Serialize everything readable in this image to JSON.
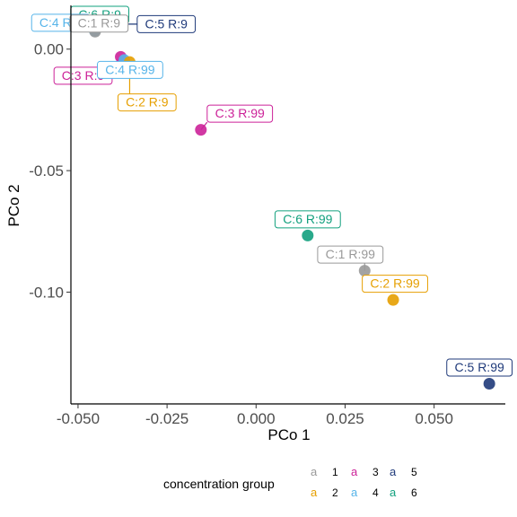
{
  "chart_data": {
    "type": "scatter",
    "xlabel": "PCo 1",
    "ylabel": "PCo 2",
    "xlim": [
      -0.052,
      0.07
    ],
    "ylim": [
      -0.146,
      0.018
    ],
    "x_ticks": [
      -0.05,
      -0.025,
      0.0,
      0.025,
      0.05
    ],
    "x_tick_labels": [
      "-0.050",
      "-0.025",
      "0.000",
      "0.025",
      "0.050"
    ],
    "y_ticks": [
      0.0,
      -0.05,
      -0.1
    ],
    "y_tick_labels": [
      "0.00",
      "-0.05",
      "-0.10"
    ],
    "grid": false,
    "legend": {
      "title": "concentration group",
      "position": "bottom",
      "key_glyph": "a",
      "entries": [
        {
          "label": "1",
          "color": "#999999"
        },
        {
          "label": "2",
          "color": "#E69F00"
        },
        {
          "label": "3",
          "color": "#CC2299"
        },
        {
          "label": "4",
          "color": "#56B4E9"
        },
        {
          "label": "5",
          "color": "#1F3A7A"
        },
        {
          "label": "6",
          "color": "#12A07E"
        }
      ]
    },
    "points": [
      {
        "label": "C:5 R:9",
        "group": "5",
        "x": -0.0475,
        "y": 0.0103,
        "color": "#1F3A7A"
      },
      {
        "label": "C:6 R:9",
        "group": "6",
        "x": -0.0465,
        "y": 0.0097,
        "color": "#12A07E"
      },
      {
        "label": "C:4 R:9",
        "group": "4",
        "x": -0.0453,
        "y": 0.0075,
        "color": "#56B4E9"
      },
      {
        "label": "C:1 R:9",
        "group": "1",
        "x": -0.0452,
        "y": 0.0072,
        "color": "#999999"
      },
      {
        "label": "C:3 R:9",
        "group": "3",
        "x": -0.038,
        "y": -0.0032,
        "color": "#CC2299"
      },
      {
        "label": "C:4 R:99",
        "group": "4",
        "x": -0.037,
        "y": -0.0045,
        "color": "#56B4E9"
      },
      {
        "label": "C:2 R:9",
        "group": "2",
        "x": -0.0355,
        "y": -0.0053,
        "color": "#E69F00"
      },
      {
        "label": "C:3 R:99",
        "group": "3",
        "x": -0.0155,
        "y": -0.0332,
        "color": "#CC2299"
      },
      {
        "label": "C:6 R:99",
        "group": "6",
        "x": 0.0145,
        "y": -0.0767,
        "color": "#12A07E"
      },
      {
        "label": "C:1 R:99",
        "group": "1",
        "x": 0.0305,
        "y": -0.0912,
        "color": "#999999"
      },
      {
        "label": "C:2 R:99",
        "group": "2",
        "x": 0.0385,
        "y": -0.1032,
        "color": "#E69F00"
      },
      {
        "label": "C:5 R:99",
        "group": "5",
        "x": 0.0655,
        "y": -0.1377,
        "color": "#1F3A7A"
      }
    ]
  }
}
